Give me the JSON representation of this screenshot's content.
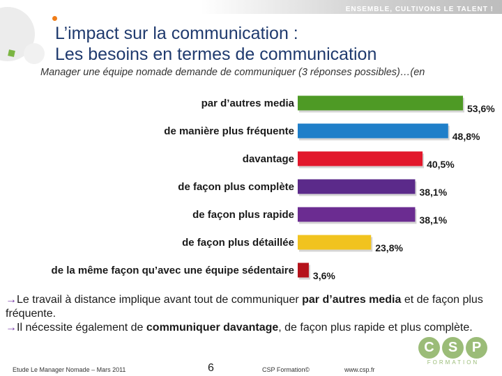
{
  "header": {
    "tagline": "ENSEMBLE, CULTIVONS LE TALENT !"
  },
  "title": {
    "line1": "L’impact sur la communication :",
    "line2": "Les besoins en termes de communication"
  },
  "subtitle": "Manager une équipe nomade demande de communiquer (3 réponses possibles)…(en",
  "chart_data": {
    "type": "bar",
    "orientation": "horizontal",
    "categories": [
      "par d’autres media",
      "de manière plus fréquente",
      "davantage",
      "de façon plus complète",
      "de façon plus rapide",
      "de façon plus détaillée",
      "de la même façon qu’avec une équipe sédentaire"
    ],
    "values": [
      53.6,
      48.8,
      40.5,
      38.1,
      38.1,
      23.8,
      3.6
    ],
    "value_labels": [
      "53,6%",
      "48,8%",
      "40,5%",
      "38,1%",
      "38,1%",
      "23,8%",
      "3,6%"
    ],
    "colors": [
      "#4e9a25",
      "#1f7fc9",
      "#e2172b",
      "#5b2a8a",
      "#6b2c91",
      "#f1c31f",
      "#b5121b"
    ],
    "xlim": [
      0,
      53.6
    ],
    "grid": false,
    "legend": "none"
  },
  "body": {
    "arrow": "→",
    "para1_a": "Le travail à distance implique avant tout de communiquer ",
    "para1_b": "par d’autres media",
    "para1_c": " et de façon plus fréquente.",
    "para2_a": "Il nécessite également de ",
    "para2_b": "communiquer davantage",
    "para2_c": ", de façon plus rapide et plus complète."
  },
  "logo": {
    "letters": [
      "C",
      "S",
      "P"
    ],
    "sub": "FORMATION"
  },
  "footer": {
    "left": "Etude Le Manager Nomade – Mars 2011",
    "page": "6",
    "copyright": "CSP Formation©",
    "url": "www.csp.fr"
  }
}
